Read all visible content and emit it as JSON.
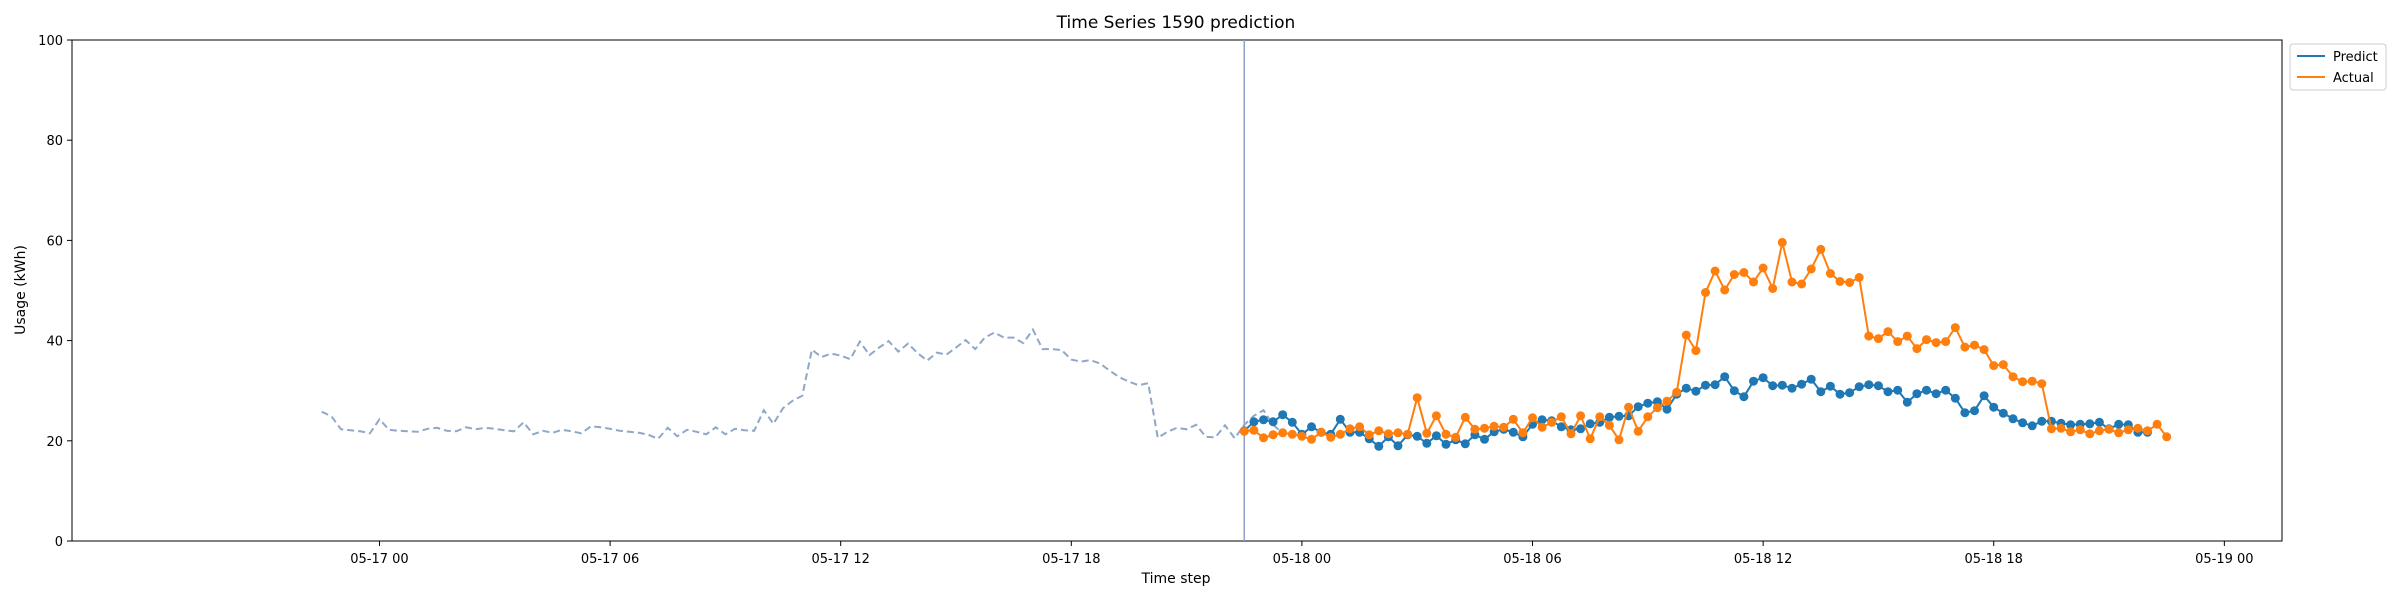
{
  "chart_data": {
    "type": "line",
    "title": "Time Series 1590 prediction",
    "xlabel": "Time step",
    "ylabel": "Usage (kWh)",
    "ylim": [
      0,
      100
    ],
    "xlim": [
      "2023-05-16T16:00",
      "2023-05-19T01:30"
    ],
    "yticks": [
      0,
      20,
      40,
      60,
      80,
      100
    ],
    "xticks": [
      {
        "t": "2023-05-17T00:00",
        "label": "05-17 00"
      },
      {
        "t": "2023-05-17T06:00",
        "label": "05-17 06"
      },
      {
        "t": "2023-05-17T12:00",
        "label": "05-17 12"
      },
      {
        "t": "2023-05-17T18:00",
        "label": "05-17 18"
      },
      {
        "t": "2023-05-18T00:00",
        "label": "05-18 00"
      },
      {
        "t": "2023-05-18T06:00",
        "label": "05-18 06"
      },
      {
        "t": "2023-05-18T12:00",
        "label": "05-18 12"
      },
      {
        "t": "2023-05-18T18:00",
        "label": "05-18 18"
      },
      {
        "t": "2023-05-19T00:00",
        "label": "05-19 00"
      }
    ],
    "grid": false,
    "legend_position": "outside-top-right",
    "colors": {
      "predict": "#1f77b4",
      "actual": "#ff7f0e",
      "history": "#8fa8c8",
      "forecast_start": "#8fa0c8"
    },
    "forecast_start": "2023-05-17T22:30",
    "history": {
      "start": "2023-05-16T22:30",
      "step_minutes": 15,
      "style": "dashed",
      "values": [
        25.8,
        24.9,
        22.3,
        22.1,
        21.9,
        21.5,
        24.3,
        22.2,
        22.0,
        21.9,
        21.8,
        22.4,
        22.6,
        22.0,
        21.9,
        22.7,
        22.3,
        22.6,
        22.4,
        22.1,
        21.9,
        23.7,
        21.3,
        22.0,
        21.6,
        22.2,
        21.9,
        21.5,
        22.9,
        22.7,
        22.4,
        22.0,
        21.8,
        21.6,
        21.2,
        20.4,
        22.6,
        20.9,
        22.2,
        21.8,
        21.3,
        22.7,
        21.3,
        22.4,
        22.1,
        22.0,
        26.1,
        23.4,
        26.5,
        28.0,
        29.0,
        38.2,
        36.7,
        37.4,
        37.0,
        36.3,
        39.8,
        37.1,
        38.6,
        39.9,
        37.8,
        39.4,
        37.5,
        36.0,
        37.6,
        37.2,
        38.6,
        40.1,
        38.3,
        40.6,
        41.6,
        40.6,
        40.6,
        39.5,
        42.2,
        38.3,
        38.3,
        38.1,
        36.2,
        35.8,
        36.1,
        35.4,
        34.0,
        32.7,
        31.8,
        31.1,
        31.5,
        20.6,
        21.8,
        22.6,
        22.3,
        23.2,
        20.8,
        20.7,
        23.1,
        20.5,
        23.2,
        25.0,
        26.1,
        23.2,
        21.5
      ]
    },
    "series": [
      {
        "name": "Predict",
        "start": "2023-05-17T22:30",
        "step_minutes": 15,
        "values": [
          22.0,
          23.8,
          24.2,
          23.8,
          25.2,
          23.7,
          21.3,
          22.8,
          21.7,
          21.3,
          24.3,
          21.7,
          21.7,
          20.4,
          18.9,
          20.8,
          19.0,
          21.2,
          20.9,
          19.5,
          21.0,
          19.3,
          20.2,
          19.4,
          21.2,
          20.3,
          21.8,
          22.3,
          21.7,
          20.8,
          23.3,
          24.2,
          24.0,
          22.8,
          22.2,
          22.4,
          23.4,
          23.7,
          24.7,
          24.9,
          25.0,
          26.8,
          27.5,
          27.8,
          26.3,
          29.3,
          30.5,
          29.9,
          31.1,
          31.2,
          32.8,
          30.0,
          28.8,
          31.9,
          32.6,
          31.0,
          31.1,
          30.5,
          31.3,
          32.3,
          29.8,
          30.9,
          29.3,
          29.6,
          30.8,
          31.2,
          31.0,
          29.8,
          30.1,
          27.7,
          29.4,
          30.1,
          29.4,
          30.1,
          28.5,
          25.6,
          26.0,
          29.0,
          26.7,
          25.5,
          24.4,
          23.6,
          23.0,
          23.9,
          23.9,
          23.5,
          23.2,
          23.3,
          23.4,
          23.7,
          22.4,
          23.3,
          23.2,
          21.7,
          21.7
        ]
      },
      {
        "name": "Actual",
        "start": "2023-05-17T22:30",
        "step_minutes": 15,
        "values": [
          21.9,
          22.1,
          20.6,
          21.2,
          21.6,
          21.3,
          20.9,
          20.3,
          21.7,
          20.7,
          21.3,
          22.4,
          22.8,
          21.2,
          22.0,
          21.4,
          21.6,
          21.3,
          28.6,
          21.5,
          25.0,
          21.3,
          20.7,
          24.7,
          22.3,
          22.5,
          22.9,
          22.7,
          24.3,
          21.6,
          24.6,
          22.7,
          23.7,
          24.8,
          21.4,
          25.0,
          20.4,
          24.8,
          23.1,
          20.2,
          26.7,
          21.9,
          24.8,
          26.6,
          27.9,
          29.7,
          41.1,
          38.0,
          49.6,
          53.9,
          50.1,
          53.2,
          53.6,
          51.7,
          54.5,
          50.4,
          59.6,
          51.7,
          51.3,
          54.3,
          58.2,
          53.4,
          51.8,
          51.6,
          52.6,
          40.9,
          40.4,
          41.8,
          39.8,
          40.9,
          38.4,
          40.2,
          39.6,
          39.8,
          42.6,
          38.7,
          39.1,
          38.2,
          35.0,
          35.2,
          32.8,
          31.8,
          31.9,
          31.4,
          22.4,
          22.5,
          21.8,
          22.2,
          21.4,
          22.0,
          22.3,
          21.6,
          22.2,
          22.5,
          22.0,
          23.3,
          20.8
        ]
      }
    ]
  }
}
